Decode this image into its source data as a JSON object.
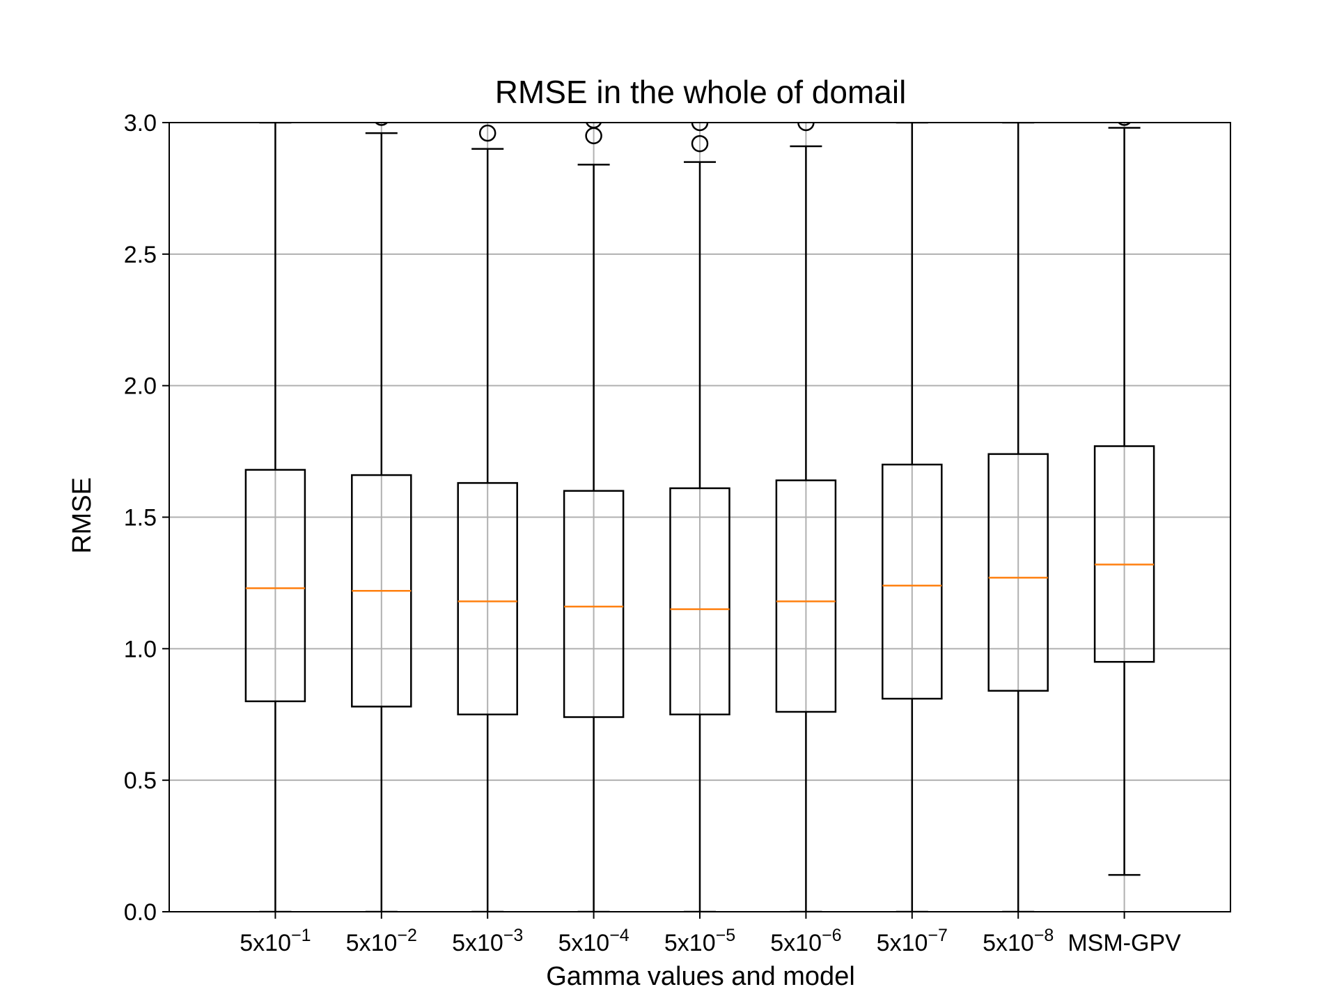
{
  "chart_data": {
    "type": "boxplot",
    "title": "RMSE in the whole of domail",
    "xlabel": "Gamma values and model",
    "ylabel": "RMSE",
    "ylim": [
      0,
      3.0
    ],
    "yticks": [
      "0.0",
      "0.5",
      "1.0",
      "1.5",
      "2.0",
      "2.5",
      "3.0"
    ],
    "grid": true,
    "categories": [
      {
        "base": "5x10",
        "exp": "−1"
      },
      {
        "base": "5x10",
        "exp": "−2"
      },
      {
        "base": "5x10",
        "exp": "−3"
      },
      {
        "base": "5x10",
        "exp": "−4"
      },
      {
        "base": "5x10",
        "exp": "−5"
      },
      {
        "base": "5x10",
        "exp": "−6"
      },
      {
        "base": "5x10",
        "exp": "−7"
      },
      {
        "base": "5x10",
        "exp": "−8"
      },
      {
        "base": "MSM-GPV",
        "exp": ""
      }
    ],
    "boxes": [
      {
        "whislo": 0.0,
        "q1": 0.8,
        "med": 1.23,
        "q3": 1.68,
        "whishi": 3.0,
        "fliers": []
      },
      {
        "whislo": 0.0,
        "q1": 0.78,
        "med": 1.22,
        "q3": 1.66,
        "whishi": 2.96,
        "fliers": [
          3.02
        ]
      },
      {
        "whislo": 0.0,
        "q1": 0.75,
        "med": 1.18,
        "q3": 1.63,
        "whishi": 2.9,
        "fliers": [
          2.96
        ]
      },
      {
        "whislo": 0.0,
        "q1": 0.74,
        "med": 1.16,
        "q3": 1.6,
        "whishi": 2.84,
        "fliers": [
          2.95,
          3.01
        ]
      },
      {
        "whislo": 0.0,
        "q1": 0.75,
        "med": 1.15,
        "q3": 1.61,
        "whishi": 2.85,
        "fliers": [
          2.92,
          3.0
        ]
      },
      {
        "whislo": 0.0,
        "q1": 0.76,
        "med": 1.18,
        "q3": 1.64,
        "whishi": 2.91,
        "fliers": [
          3.0
        ]
      },
      {
        "whislo": 0.0,
        "q1": 0.81,
        "med": 1.24,
        "q3": 1.7,
        "whishi": 3.0,
        "fliers": []
      },
      {
        "whislo": 0.0,
        "q1": 0.84,
        "med": 1.27,
        "q3": 1.74,
        "whishi": 3.0,
        "fliers": []
      },
      {
        "whislo": 0.14,
        "q1": 0.95,
        "med": 1.32,
        "q3": 1.77,
        "whishi": 2.98,
        "fliers": [
          3.02
        ]
      }
    ],
    "colors": {
      "box": "#000000",
      "median": "#ff7f0e",
      "grid": "#b0b0b0"
    }
  }
}
